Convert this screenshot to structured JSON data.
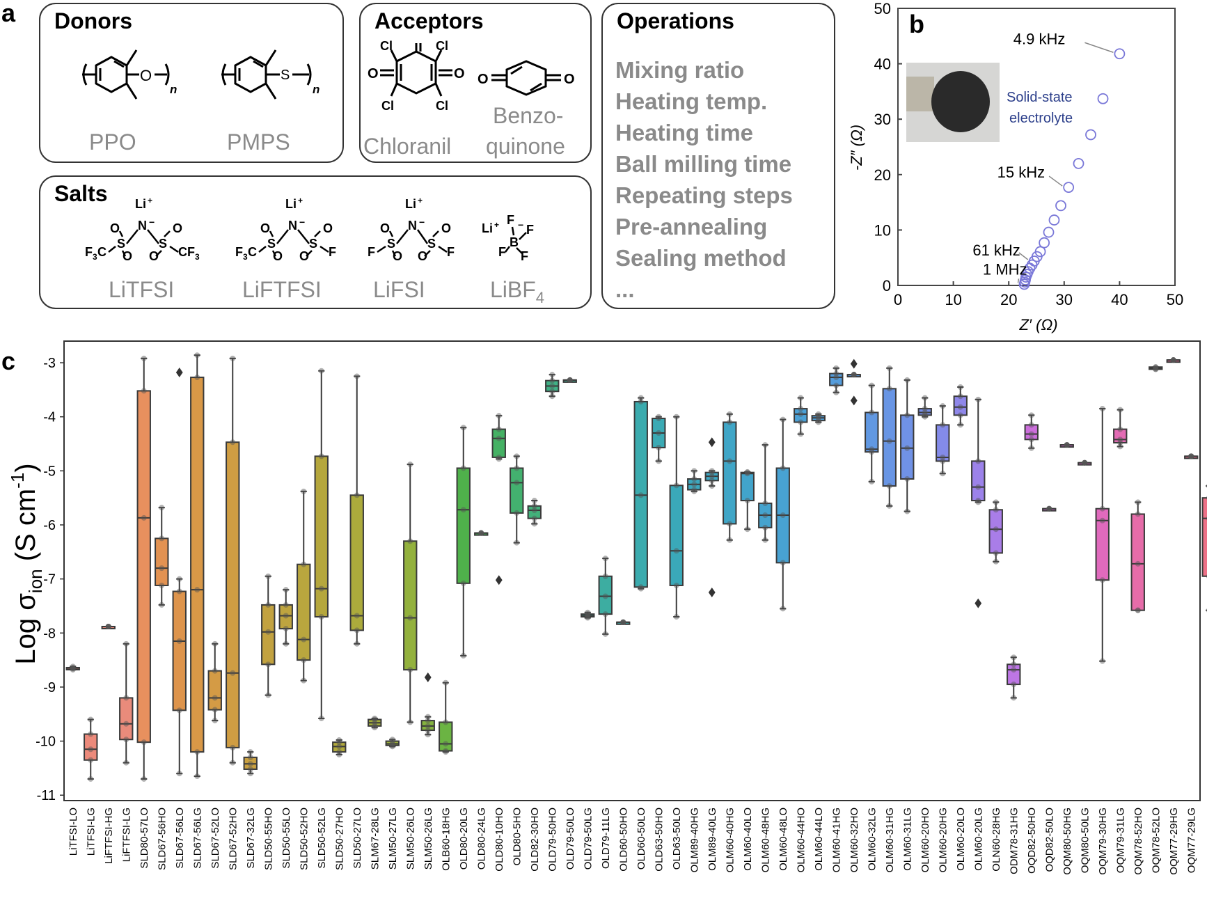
{
  "panel_letters": {
    "a": "a",
    "b": "b",
    "c": "c"
  },
  "panel_a": {
    "donors": {
      "title": "Donors",
      "items": [
        "PPO",
        "PMPS"
      ]
    },
    "acceptors": {
      "title": "Acceptors",
      "items": [
        "Chloranil",
        "Benzo-",
        "quinone"
      ]
    },
    "operations": {
      "title": "Operations",
      "items": [
        "Mixing ratio",
        "Heating temp.",
        "Heating time",
        "Ball milling time",
        "Repeating steps",
        "Pre-annealing",
        "Sealing method",
        "..."
      ]
    },
    "salts": {
      "title": "Salts",
      "items": [
        "LiTFSI",
        "LiFTFSI",
        "LiFSI",
        "LiBF"
      ],
      "libf_subscript": "4"
    }
  },
  "chart_data": [
    {
      "panel": "b",
      "type": "scatter",
      "xlabel": "Z′ (Ω)",
      "ylabel": "-Z″ (Ω)",
      "xlim": [
        0,
        50
      ],
      "ylim": [
        0,
        50
      ],
      "xticks": [
        0,
        10,
        20,
        30,
        40,
        50
      ],
      "yticks": [
        0,
        10,
        20,
        30,
        40,
        50
      ],
      "x": [
        22.8,
        22.9,
        23.0,
        23.1,
        23.3,
        23.5,
        23.8,
        24.2,
        24.6,
        25.1,
        25.7,
        26.4,
        27.2,
        28.2,
        29.4,
        30.8,
        32.6,
        34.8,
        37.0,
        40.0
      ],
      "y": [
        0.2,
        0.6,
        1.0,
        1.5,
        2.0,
        2.5,
        3.1,
        3.7,
        4.4,
        5.2,
        6.1,
        7.7,
        9.6,
        11.8,
        14.4,
        17.7,
        22.0,
        27.2,
        33.7,
        41.8
      ],
      "marker_color": "#7a78d8",
      "annotations": [
        {
          "text": "4.9 kHz",
          "x": 40.0,
          "y": 41.8
        },
        {
          "text": "15 kHz",
          "x": 30.8,
          "y": 17.7
        },
        {
          "text": "61 kHz",
          "x": 24.6,
          "y": 4.4
        },
        {
          "text": "1 MHz",
          "x": 22.8,
          "y": 0.2
        }
      ],
      "inset_label": [
        "Solid-state",
        "electrolyte"
      ]
    },
    {
      "panel": "c",
      "type": "box",
      "ylabel_main": "Log σ",
      "ylabel_sub": "ion",
      "ylabel_unit": " (S cm",
      "ylabel_exp": "-1",
      "ylabel_close": ")",
      "ylim": [
        -11.1,
        -2.6
      ],
      "yticks": [
        -3,
        -4,
        -5,
        -6,
        -7,
        -8,
        -9,
        -10,
        -11
      ],
      "categories": [
        "LiTFSI-LO",
        "LiTFSI-LG",
        "LiFTFSI-HG",
        "LiFTFSI-LG",
        "SLD80-57LO",
        "SLD67-56HO",
        "SLD67-56LO",
        "SLD67-56LG",
        "SLD67-52LO",
        "SLD67-52HO",
        "SLD67-32LG",
        "SLD50-55HO",
        "SLD50-55LO",
        "SLD50-52HO",
        "SLD50-52LG",
        "SLD50-27HO",
        "SLD50-27LO",
        "SLM67-28LG",
        "SLM50-27LG",
        "SLM50-26LO",
        "SLM50-26LG",
        "OLB60-18HG",
        "OLD80-20LG",
        "OLD80-24LG",
        "OLD80-10HO",
        "OLD80-5HO",
        "OLD82-30HO",
        "OLD79-50HO",
        "OLD79-50LO",
        "OLD79-50LG",
        "OLD79-11LG",
        "OLD60-50HO",
        "OLD60-50LO",
        "OLD63-50HO",
        "OLD63-50LO",
        "OLM89-40HG",
        "OLM89-40LG",
        "OLM60-40HG",
        "OLM60-40LO",
        "OLM60-48HG",
        "OLM60-48LO",
        "OLM60-44HO",
        "OLM60-44LO",
        "OLM60-41HG",
        "OLM60-32HO",
        "OLM60-32LG",
        "OLM60-31HG",
        "OLM60-31LG",
        "OLM60-20HO",
        "OLM60-20HG",
        "OLM60-20LO",
        "OLM60-20LG",
        "OLN60-28HG",
        "ODM78-31HG",
        "OQD82-50HO",
        "OQD82-50LO",
        "OQM80-50HG",
        "OQM80-50LG",
        "OQM79-30HG",
        "OQM79-31LG",
        "OQM78-52HO",
        "OQM78-52LO",
        "OQM77-29HG",
        "OQM77-29LG"
      ],
      "boxes": [
        {
          "min": -8.68,
          "q1": -8.66,
          "med": -8.65,
          "q3": -8.64,
          "max": -8.62,
          "color": "#e9877c"
        },
        {
          "min": -10.7,
          "q1": -10.35,
          "med": -10.15,
          "q3": -9.87,
          "max": -9.6,
          "color": "#ec8a7b"
        },
        {
          "min": -7.88,
          "q1": -7.88,
          "med": -7.88,
          "q3": -7.88,
          "max": -7.88,
          "color": "#ea897a"
        },
        {
          "min": -10.4,
          "q1": -9.97,
          "med": -9.68,
          "q3": -9.2,
          "max": -8.2,
          "color": "#e98b7b"
        },
        {
          "min": -10.7,
          "q1": -10.02,
          "med": -5.87,
          "q3": -3.52,
          "max": -2.92,
          "color": "#e8905e"
        },
        {
          "min": -7.48,
          "q1": -7.12,
          "med": -6.8,
          "q3": -6.25,
          "max": -5.68,
          "color": "#e29252"
        },
        {
          "min": -10.6,
          "q1": -9.43,
          "med": -8.15,
          "q3": -7.23,
          "max": -7.0,
          "color": "#dd944c"
        },
        {
          "min": -10.65,
          "q1": -10.2,
          "med": -7.2,
          "q3": -3.27,
          "max": -2.86,
          "color": "#d99847"
        },
        {
          "min": -9.62,
          "q1": -9.42,
          "med": -9.2,
          "q3": -8.7,
          "max": -8.2,
          "color": "#d49b45"
        },
        {
          "min": -10.4,
          "q1": -10.12,
          "med": -8.74,
          "q3": -4.47,
          "max": -2.92,
          "color": "#cf9d43"
        },
        {
          "min": -10.6,
          "q1": -10.52,
          "med": -10.42,
          "q3": -10.3,
          "max": -10.2,
          "color": "#c9a040"
        },
        {
          "min": -9.15,
          "q1": -8.58,
          "med": -7.98,
          "q3": -7.48,
          "max": -6.95,
          "color": "#c2a240"
        },
        {
          "min": -8.2,
          "q1": -7.92,
          "med": -7.68,
          "q3": -7.48,
          "max": -7.2,
          "color": "#bea43f"
        },
        {
          "min": -8.88,
          "q1": -8.5,
          "med": -8.12,
          "q3": -6.73,
          "max": -5.38,
          "color": "#b9a63e"
        },
        {
          "min": -9.58,
          "q1": -7.7,
          "med": -7.18,
          "q3": -4.73,
          "max": -3.15,
          "color": "#b5a73d"
        },
        {
          "min": -10.25,
          "q1": -10.2,
          "med": -10.1,
          "q3": -10.02,
          "max": -9.98,
          "color": "#b1a93c"
        },
        {
          "min": -8.2,
          "q1": -7.95,
          "med": -7.68,
          "q3": -5.45,
          "max": -3.25,
          "color": "#acab3c"
        },
        {
          "min": -9.75,
          "q1": -9.72,
          "med": -9.66,
          "q3": -9.6,
          "max": -9.58,
          "color": "#a3ae3c"
        },
        {
          "min": -10.1,
          "q1": -10.08,
          "med": -10.05,
          "q3": -10.0,
          "max": -9.97,
          "color": "#9cb03c"
        },
        {
          "min": -9.65,
          "q1": -8.68,
          "med": -7.72,
          "q3": -6.3,
          "max": -4.88,
          "color": "#93b13d"
        },
        {
          "min": -9.88,
          "q1": -9.8,
          "med": -9.72,
          "q3": -9.62,
          "max": -9.55,
          "color": "#85b33f"
        },
        {
          "min": -10.2,
          "q1": -10.18,
          "med": -10.05,
          "q3": -9.65,
          "max": -8.92,
          "color": "#6bb443"
        },
        {
          "min": -8.42,
          "q1": -7.08,
          "med": -5.72,
          "q3": -4.95,
          "max": -4.2,
          "color": "#4fb14b"
        },
        {
          "min": -6.15,
          "q1": -6.15,
          "med": -6.15,
          "q3": -6.15,
          "max": -6.15,
          "color": "#47b257"
        },
        {
          "min": -4.78,
          "q1": -4.75,
          "med": -4.4,
          "q3": -4.23,
          "max": -3.98,
          "color": "#45b164"
        },
        {
          "min": -6.33,
          "q1": -5.78,
          "med": -5.22,
          "q3": -4.95,
          "max": -4.73,
          "color": "#43b16f"
        },
        {
          "min": -5.98,
          "q1": -5.88,
          "med": -5.73,
          "q3": -5.65,
          "max": -5.55,
          "color": "#42b07a"
        },
        {
          "min": -3.62,
          "q1": -3.53,
          "med": -3.43,
          "q3": -3.33,
          "max": -3.22,
          "color": "#40b086"
        },
        {
          "min": -3.32,
          "q1": -3.32,
          "med": -3.32,
          "q3": -3.32,
          "max": -3.32,
          "color": "#3fae90"
        },
        {
          "min": -7.72,
          "q1": -7.7,
          "med": -7.68,
          "q3": -7.65,
          "max": -7.62,
          "color": "#3eae99"
        },
        {
          "min": -8.02,
          "q1": -7.65,
          "med": -7.32,
          "q3": -6.95,
          "max": -6.62,
          "color": "#3dada1"
        },
        {
          "min": -7.8,
          "q1": -7.8,
          "med": -7.8,
          "q3": -7.8,
          "max": -7.8,
          "color": "#3caca8"
        },
        {
          "min": -7.18,
          "q1": -7.15,
          "med": -5.45,
          "q3": -3.72,
          "max": -3.65,
          "color": "#3babae"
        },
        {
          "min": -4.82,
          "q1": -4.57,
          "med": -4.3,
          "q3": -4.03,
          "max": -4.0,
          "color": "#3baab4"
        },
        {
          "min": -7.7,
          "q1": -7.12,
          "med": -6.48,
          "q3": -5.27,
          "max": -4.0,
          "color": "#3aa9b9"
        },
        {
          "min": -5.38,
          "q1": -5.35,
          "med": -5.25,
          "q3": -5.15,
          "max": -5.0,
          "color": "#3ca8bf"
        },
        {
          "min": -5.28,
          "q1": -5.18,
          "med": -5.1,
          "q3": -5.03,
          "max": -5.0,
          "color": "#3ea7c3"
        },
        {
          "min": -6.28,
          "q1": -5.98,
          "med": -4.82,
          "q3": -4.1,
          "max": -3.95,
          "color": "#40a6c7"
        },
        {
          "min": -6.08,
          "q1": -5.55,
          "med": -5.05,
          "q3": -5.03,
          "max": -5.02,
          "color": "#42a4cb"
        },
        {
          "min": -6.28,
          "q1": -6.05,
          "med": -5.82,
          "q3": -5.6,
          "max": -4.52,
          "color": "#45a3ce"
        },
        {
          "min": -7.55,
          "q1": -6.7,
          "med": -5.82,
          "q3": -4.95,
          "max": -4.05,
          "color": "#48a2d2"
        },
        {
          "min": -4.32,
          "q1": -4.1,
          "med": -3.95,
          "q3": -3.85,
          "max": -3.65,
          "color": "#4ca1d6"
        },
        {
          "min": -4.1,
          "q1": -4.07,
          "med": -4.02,
          "q3": -3.98,
          "max": -3.95,
          "color": "#509fd9"
        },
        {
          "min": -3.55,
          "q1": -3.42,
          "med": -3.27,
          "q3": -3.2,
          "max": -3.1,
          "color": "#559ddc"
        },
        {
          "min": -3.22,
          "q1": -3.22,
          "med": -3.22,
          "q3": -3.22,
          "max": -3.22,
          "color": "#5b9bdf"
        },
        {
          "min": -5.2,
          "q1": -4.65,
          "med": -4.6,
          "q3": -3.92,
          "max": -3.42,
          "color": "#6198e2"
        },
        {
          "min": -5.65,
          "q1": -5.28,
          "med": -4.45,
          "q3": -3.48,
          "max": -3.1,
          "color": "#6895e4"
        },
        {
          "min": -5.75,
          "q1": -5.15,
          "med": -4.58,
          "q3": -3.97,
          "max": -3.32,
          "color": "#7092e6"
        },
        {
          "min": -4.0,
          "q1": -3.97,
          "med": -3.92,
          "q3": -3.85,
          "max": -3.65,
          "color": "#788fe8"
        },
        {
          "min": -5.05,
          "q1": -4.82,
          "med": -4.75,
          "q3": -4.15,
          "max": -3.8,
          "color": "#848be9"
        },
        {
          "min": -4.15,
          "q1": -3.97,
          "med": -3.82,
          "q3": -3.62,
          "max": -3.45,
          "color": "#8f87ea"
        },
        {
          "min": -5.58,
          "q1": -5.55,
          "med": -5.3,
          "q3": -4.82,
          "max": -3.68,
          "color": "#9c82ea"
        },
        {
          "min": -6.68,
          "q1": -6.52,
          "med": -6.08,
          "q3": -5.72,
          "max": -5.58,
          "color": "#a97de8"
        },
        {
          "min": -9.2,
          "q1": -8.95,
          "med": -8.68,
          "q3": -8.58,
          "max": -8.45,
          "color": "#bd76e5"
        },
        {
          "min": -4.58,
          "q1": -4.42,
          "med": -4.32,
          "q3": -4.15,
          "max": -3.97,
          "color": "#cc6fdc"
        },
        {
          "min": -5.7,
          "q1": -5.7,
          "med": -5.7,
          "q3": -5.7,
          "max": -5.7,
          "color": "#d16cd5"
        },
        {
          "min": -4.52,
          "q1": -4.52,
          "med": -4.52,
          "q3": -4.52,
          "max": -4.52,
          "color": "#d66ace"
        },
        {
          "min": -4.85,
          "q1": -4.85,
          "med": -4.85,
          "q3": -4.85,
          "max": -4.85,
          "color": "#db69c6"
        },
        {
          "min": -8.52,
          "q1": -7.02,
          "med": -5.92,
          "q3": -5.7,
          "max": -3.85,
          "color": "#e06abd"
        },
        {
          "min": -4.55,
          "q1": -4.48,
          "med": -4.42,
          "q3": -4.23,
          "max": -3.87,
          "color": "#e36bb4"
        },
        {
          "min": -7.58,
          "q1": -7.58,
          "med": -6.72,
          "q3": -5.8,
          "max": -5.58,
          "color": "#e66ca9"
        },
        {
          "min": -3.12,
          "q1": -3.12,
          "med": -3.1,
          "q3": -3.08,
          "max": -3.08,
          "color": "#e86da0"
        },
        {
          "min": -2.95,
          "q1": -2.95,
          "med": -2.95,
          "q3": -2.95,
          "max": -2.95,
          "color": "#ea6e98"
        },
        {
          "min": -4.73,
          "q1": -4.73,
          "med": -4.73,
          "q3": -4.73,
          "max": -4.73,
          "color": "#eb6f8f"
        },
        {
          "min": -7.58,
          "q1": -6.95,
          "med": -5.88,
          "q3": -5.5,
          "max": -5.28,
          "color": "#ed7187"
        }
      ],
      "outliers": [
        {
          "cat": 6,
          "y": -3.18
        },
        {
          "cat": 20,
          "y": -8.82
        },
        {
          "cat": 24,
          "y": -7.02
        },
        {
          "cat": 36,
          "y": -4.47
        },
        {
          "cat": 36,
          "y": -7.25
        },
        {
          "cat": 44,
          "y": -3.02
        },
        {
          "cat": 44,
          "y": -3.7
        },
        {
          "cat": 51,
          "y": -7.45
        }
      ]
    }
  ]
}
